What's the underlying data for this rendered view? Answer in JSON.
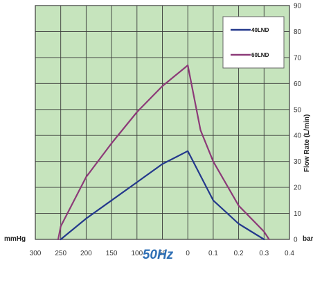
{
  "chart_data": {
    "type": "line",
    "caption": "50Hz",
    "x_units": {
      "left": "mmHg",
      "right": "bar"
    },
    "x_ticks": [
      "300",
      "250",
      "200",
      "150",
      "100",
      "50",
      "0",
      "0.1",
      "0.2",
      "0.3",
      "0.4"
    ],
    "ylabel": "Flow Rate (L/min)",
    "ylim": [
      0,
      90
    ],
    "y_ticks": [
      "0",
      "10",
      "20",
      "30",
      "40",
      "50",
      "60",
      "70",
      "80",
      "90"
    ],
    "grid": true,
    "legend_position": "top-right",
    "colors": {
      "plot_bg": "#c6e4bd",
      "grid": "#3a3a3a",
      "caption": "#2f6fb4"
    },
    "series": [
      {
        "name": "40LND",
        "color": "#23388c",
        "points": [
          {
            "x": 250,
            "side": "vacuum",
            "y": 0
          },
          {
            "x": 200,
            "side": "vacuum",
            "y": 8
          },
          {
            "x": 150,
            "side": "vacuum",
            "y": 15
          },
          {
            "x": 100,
            "side": "vacuum",
            "y": 22
          },
          {
            "x": 50,
            "side": "vacuum",
            "y": 29
          },
          {
            "x": 0,
            "side": "vacuum",
            "y": 34
          },
          {
            "x": 0.1,
            "side": "pressure",
            "y": 15
          },
          {
            "x": 0.2,
            "side": "pressure",
            "y": 6
          },
          {
            "x": 0.3,
            "side": "pressure",
            "y": 0
          }
        ]
      },
      {
        "name": "60LND",
        "color": "#8c3a78",
        "points": [
          {
            "x": 255,
            "side": "vacuum",
            "y": 0
          },
          {
            "x": 250,
            "side": "vacuum",
            "y": 5
          },
          {
            "x": 200,
            "side": "vacuum",
            "y": 24
          },
          {
            "x": 150,
            "side": "vacuum",
            "y": 37
          },
          {
            "x": 100,
            "side": "vacuum",
            "y": 49
          },
          {
            "x": 50,
            "side": "vacuum",
            "y": 59
          },
          {
            "x": 0,
            "side": "vacuum",
            "y": 67
          },
          {
            "x": 0.05,
            "side": "pressure",
            "y": 42
          },
          {
            "x": 0.1,
            "side": "pressure",
            "y": 30
          },
          {
            "x": 0.2,
            "side": "pressure",
            "y": 13
          },
          {
            "x": 0.3,
            "side": "pressure",
            "y": 3
          },
          {
            "x": 0.32,
            "side": "pressure",
            "y": 0
          }
        ]
      }
    ]
  }
}
